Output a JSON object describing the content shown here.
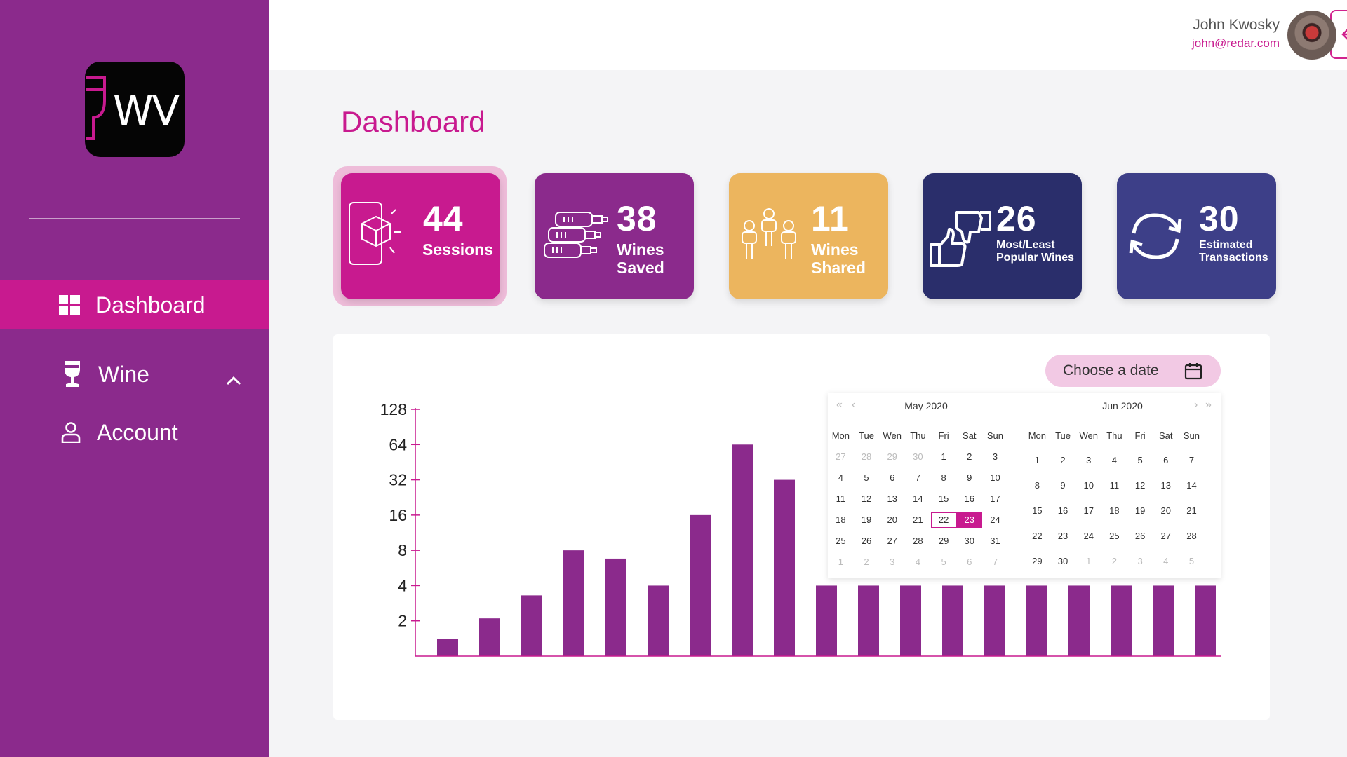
{
  "brand": {
    "logo_text": "WV"
  },
  "sidebar": {
    "items": [
      {
        "label": "Dashboard",
        "icon": "grid-icon"
      },
      {
        "label": "Wine",
        "icon": "wine-glass-icon"
      },
      {
        "label": "Account",
        "icon": "user-icon"
      }
    ]
  },
  "user": {
    "name": "John Kwosky",
    "email": "john@redar.com"
  },
  "page": {
    "title": "Dashboard"
  },
  "stats": [
    {
      "value": "44",
      "label_lines": [
        "Sessions"
      ],
      "icon": "phone-box-icon",
      "color": "#c81a8f"
    },
    {
      "value": "38",
      "label_lines": [
        "Wines",
        "Saved"
      ],
      "icon": "wine-bottles-icon",
      "color": "#8b2a8c"
    },
    {
      "value": "11",
      "label_lines": [
        "Wines",
        "Shared"
      ],
      "icon": "people-icon",
      "color": "#ecb55e"
    },
    {
      "value": "26",
      "label_lines": [
        "Most/Least",
        "Popular Wines"
      ],
      "icon": "thumbs-icon",
      "color": "#2a2e6b"
    },
    {
      "value": "30",
      "label_lines": [
        "Estimated",
        "Transactions"
      ],
      "icon": "sync-icon",
      "color": "#3d3f88"
    }
  ],
  "date_picker": {
    "button_label": "Choose a date",
    "left": {
      "title": "May  2020",
      "weekdays": [
        "Mon",
        "Tue",
        "Wen",
        "Thu",
        "Fri",
        "Sat",
        "Sun"
      ],
      "weeks": [
        [
          "27",
          "28",
          "29",
          "30",
          "1",
          "2",
          "3"
        ],
        [
          "4",
          "5",
          "6",
          "7",
          "8",
          "9",
          "10"
        ],
        [
          "11",
          "12",
          "13",
          "14",
          "15",
          "16",
          "17"
        ],
        [
          "18",
          "19",
          "20",
          "21",
          "22",
          "23",
          "24"
        ],
        [
          "25",
          "26",
          "27",
          "28",
          "29",
          "30",
          "31"
        ],
        [
          "1",
          "2",
          "3",
          "4",
          "5",
          "6",
          "7"
        ]
      ],
      "today": "22",
      "selected": "23"
    },
    "right": {
      "title": "Jun  2020",
      "weekdays": [
        "Mon",
        "Tue",
        "Wen",
        "Thu",
        "Fri",
        "Sat",
        "Sun"
      ],
      "weeks": [
        [
          "1",
          "2",
          "3",
          "4",
          "5",
          "6",
          "7"
        ],
        [
          "8",
          "9",
          "10",
          "11",
          "12",
          "13",
          "14"
        ],
        [
          "15",
          "16",
          "17",
          "18",
          "19",
          "20",
          "21"
        ],
        [
          "22",
          "23",
          "24",
          "25",
          "26",
          "27",
          "28"
        ],
        [
          "29",
          "30",
          "1",
          "2",
          "3",
          "4",
          "5"
        ]
      ]
    }
  },
  "chart_data": {
    "type": "bar",
    "scale": "log2",
    "y_ticks": [
      2,
      4,
      8,
      16,
      32,
      64,
      128
    ],
    "ylim": [
      1,
      128
    ],
    "values": [
      1.4,
      2.1,
      3.3,
      8,
      6.8,
      4,
      16,
      64,
      32,
      4,
      4,
      4,
      4,
      4,
      4,
      4,
      4,
      4,
      4
    ],
    "color": "#8b2a8c",
    "axis_color": "#c81a8f"
  }
}
